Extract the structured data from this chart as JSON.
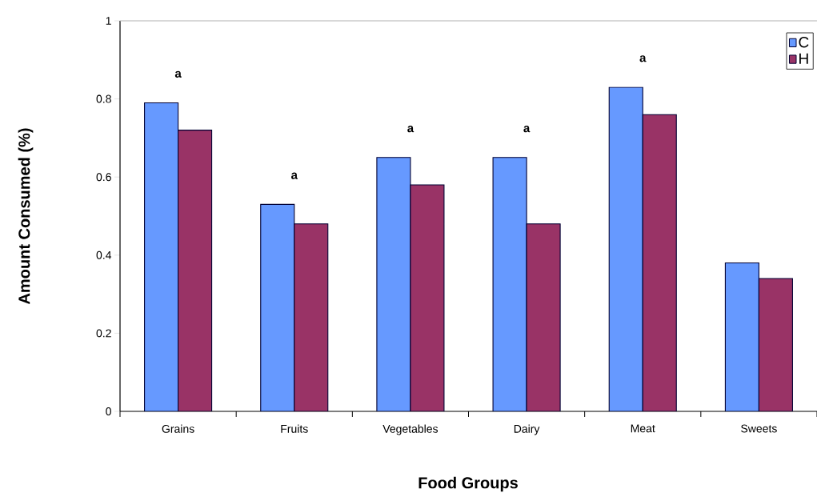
{
  "chart_data": {
    "type": "bar",
    "xlabel": "Food Groups",
    "ylabel": "Amount Consumed (%)",
    "categories": [
      "Grains",
      "Fruits",
      "Vegetables",
      "Dairy",
      "Meat",
      "Sweets"
    ],
    "series": [
      {
        "name": "C",
        "color": "#6699ff",
        "values": [
          0.79,
          0.53,
          0.65,
          0.65,
          0.83,
          0.38
        ]
      },
      {
        "name": "H",
        "color": "#993366",
        "values": [
          0.72,
          0.48,
          0.58,
          0.48,
          0.76,
          0.34
        ]
      }
    ],
    "ylim": [
      0,
      1
    ],
    "yticks": [
      0,
      0.2,
      0.4,
      0.6,
      0.8,
      1
    ],
    "legend": "top right",
    "grid": false,
    "annotations": [
      "a",
      "a",
      "a",
      "a",
      "a"
    ]
  }
}
